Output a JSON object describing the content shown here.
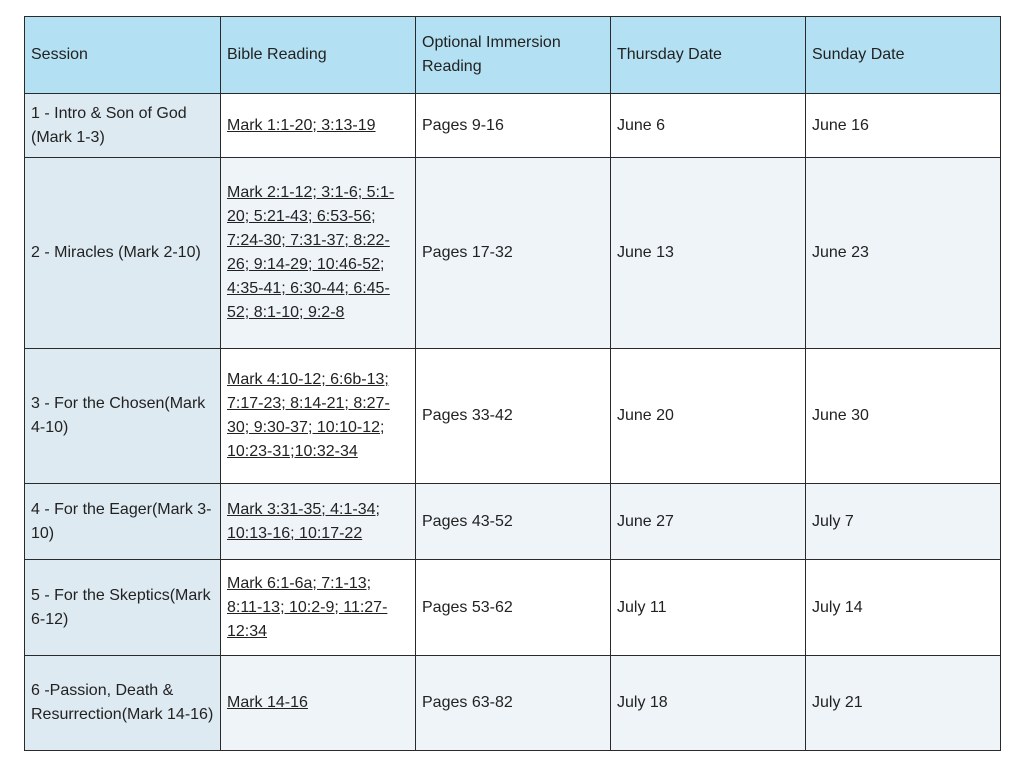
{
  "headers": [
    "Session",
    "Bible Reading",
    "Optional Immersion Reading",
    "Thursday Date",
    "Sunday Date"
  ],
  "colors": {
    "header_bg": "#b3e0f2",
    "session_bg": "#deeaf1",
    "alt_row_bg": "#eef4f8"
  },
  "rows": [
    {
      "session": "1 - Intro & Son of God (Mark 1-3)",
      "reading": "Mark 1:1-20; 3:13-19",
      "immersion": "Pages 9-16",
      "thursday": "June 6",
      "sunday": "June 16"
    },
    {
      "session": "2 - Miracles (Mark 2-10)",
      "reading": "Mark 2:1-12; 3:1-6; 5:1-20; 5:21-43; 6:53-56; 7:24-30; 7:31-37; 8:22-26; 9:14-29; 10:46-52; 4:35-41; 6:30-44; 6:45-52; 8:1-10; 9:2-8",
      "immersion": "Pages 17-32",
      "thursday": "June 13",
      "sunday": "June 23"
    },
    {
      "session": "3 - For the Chosen(Mark 4-10)",
      "reading": "Mark 4:10-12; 6:6b-13; 7:17-23; 8:14-21; 8:27-30; 9:30-37; 10:10-12; 10:23-31;10:32-34",
      "immersion": "Pages 33-42",
      "thursday": "June 20",
      "sunday": "June 30"
    },
    {
      "session": "4 - For the Eager(Mark 3-10)",
      "reading": "Mark 3:31-35; 4:1-34; 10:13-16; 10:17-22",
      "immersion": "Pages 43-52",
      "thursday": "June 27",
      "sunday": "July 7"
    },
    {
      "session": "5 - For the Skeptics(Mark 6-12)",
      "reading": "Mark 6:1-6a; 7:1-13; 8:11-13; 10:2-9; 11:27-12:34",
      "immersion": "Pages 53-62",
      "thursday": "July 11",
      "sunday": "July 14"
    },
    {
      "session": "6 -Passion, Death & Resurrection(Mark 14-16)",
      "reading": "Mark 14-16",
      "immersion": "Pages 63-82",
      "thursday": "July 18",
      "sunday": "July 21"
    }
  ]
}
